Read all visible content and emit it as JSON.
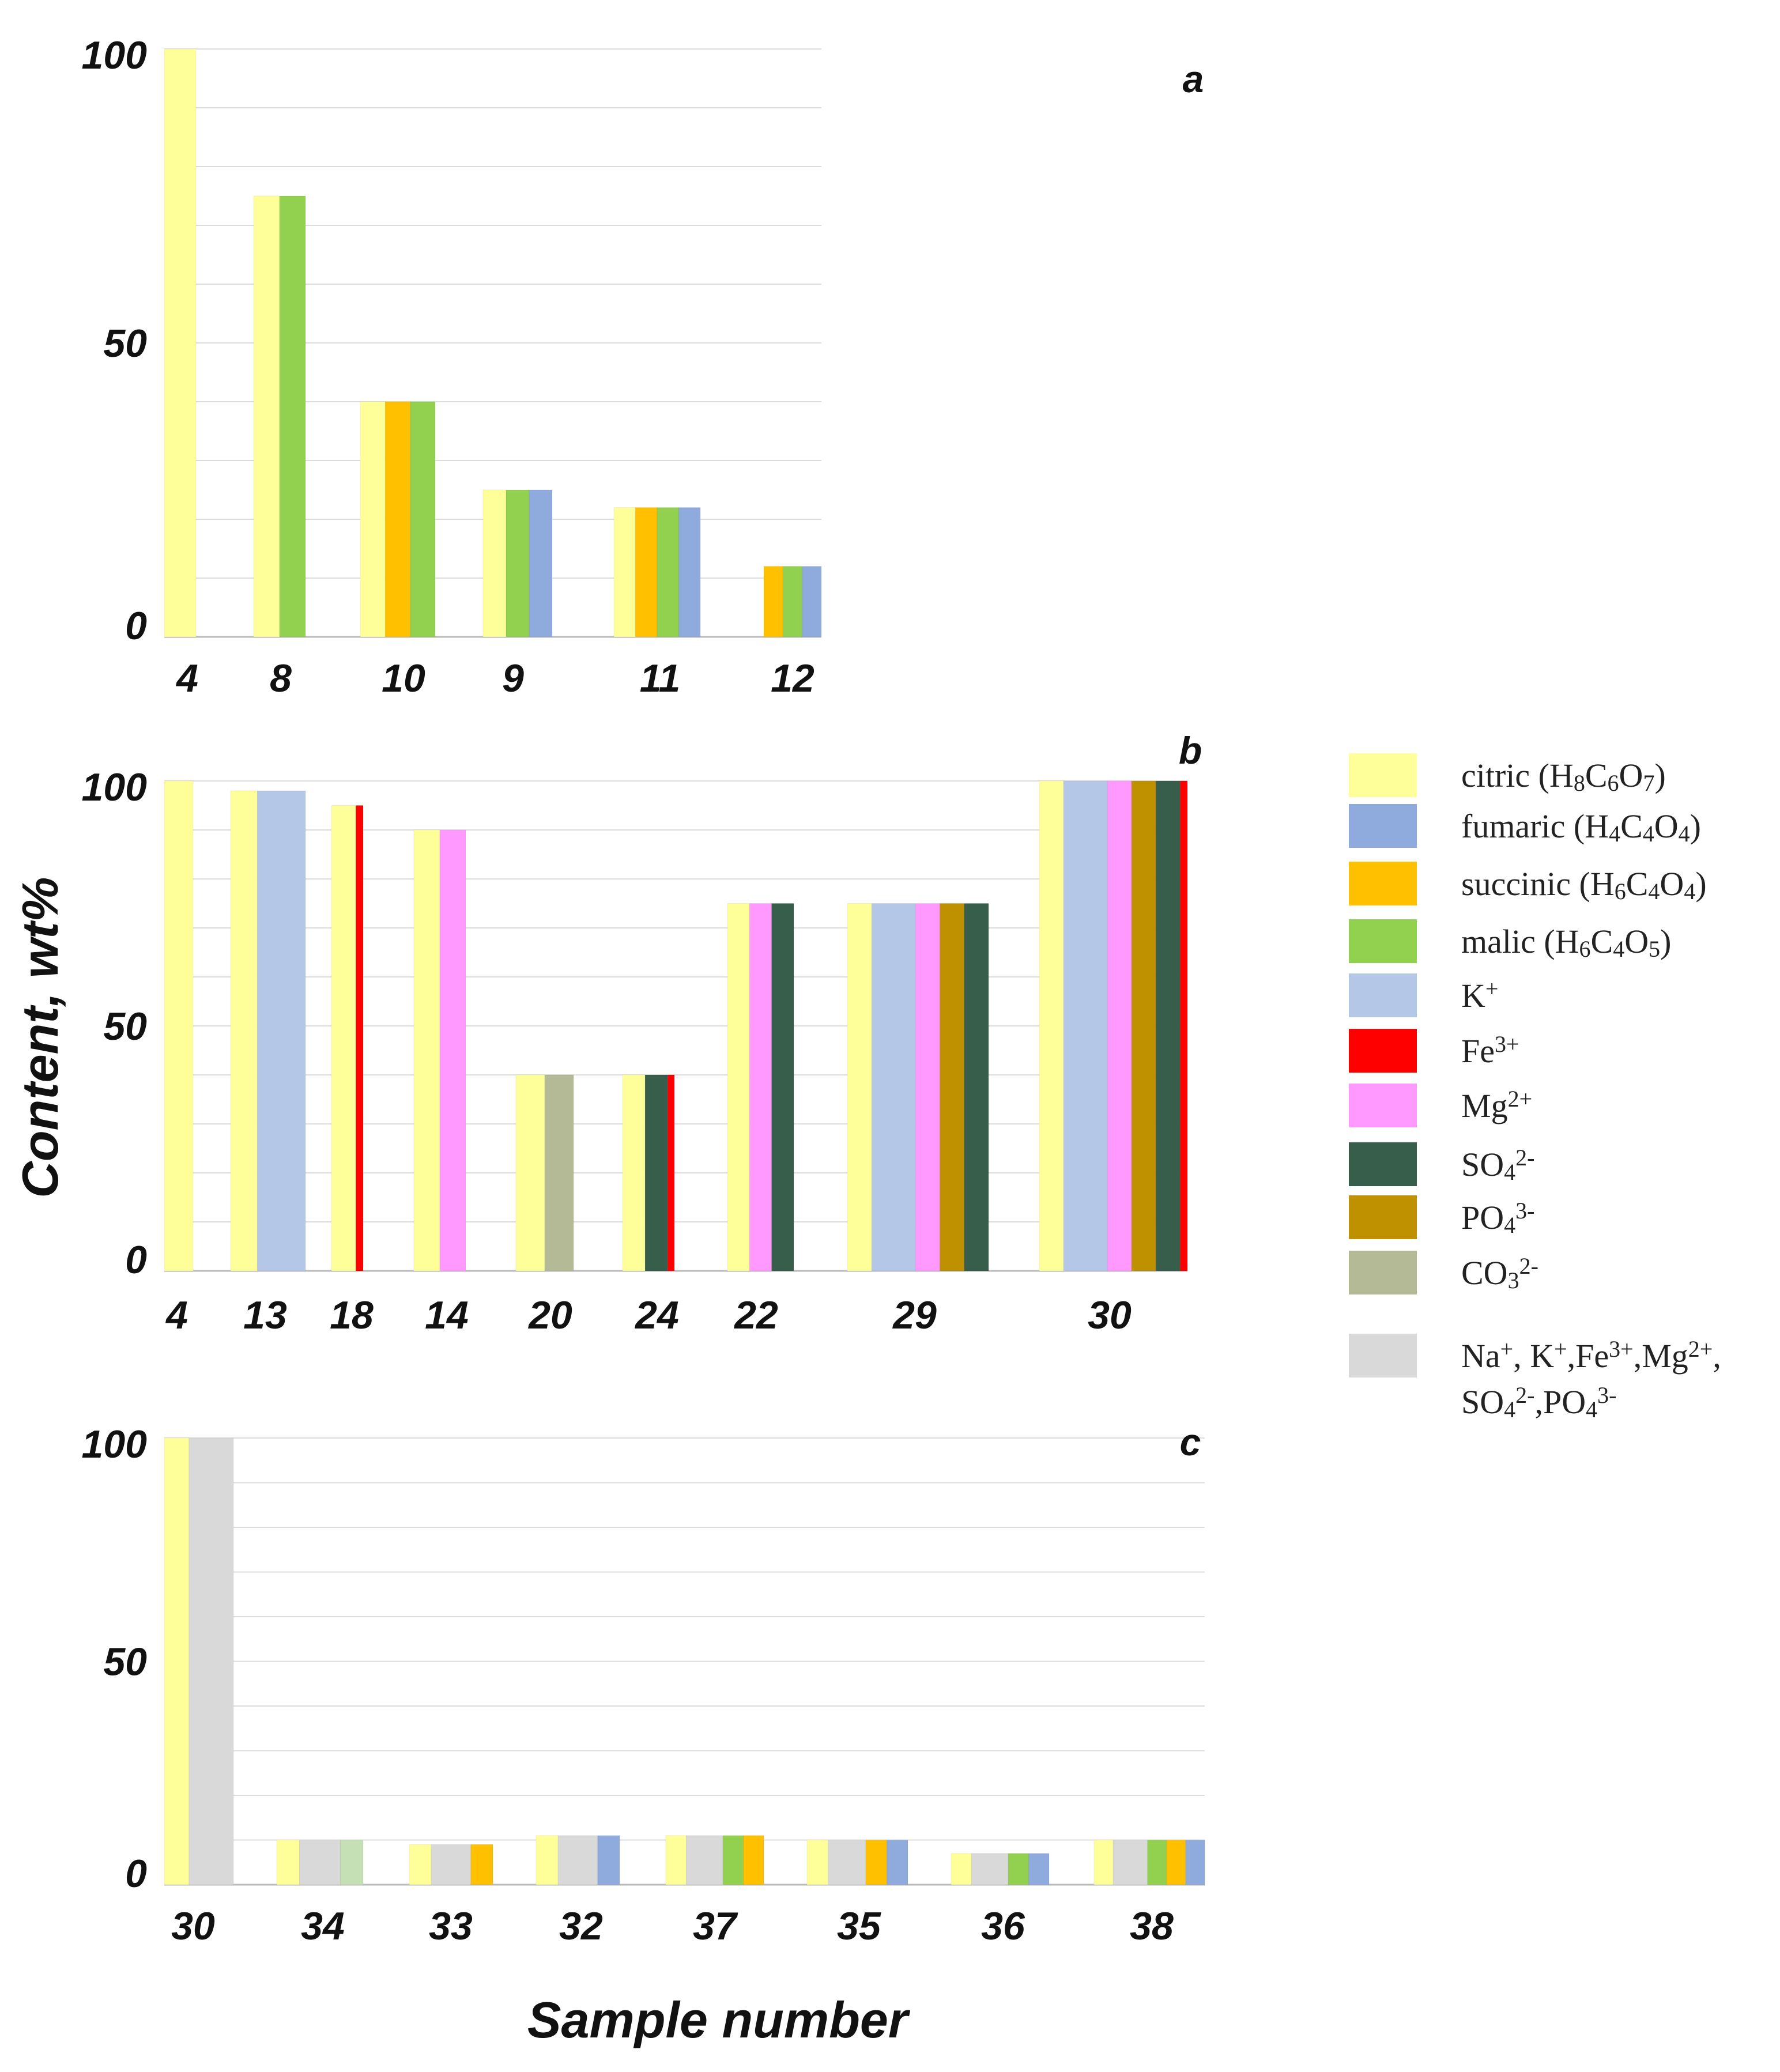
{
  "colors": {
    "citric": "#ffff99",
    "fumaric": "#8faadc",
    "succinic": "#ffc000",
    "malic": "#92d050",
    "K": "#b4c7e7",
    "Fe": "#ff0000",
    "Mg": "#ff99ff",
    "SO4": "#375d4b",
    "PO4": "#bf9000",
    "CO3": "#b4b996",
    "mix": "#d9d9d9",
    "mixlight": "#c5e0b4"
  },
  "axes": {
    "ylabel": "Content, wt%",
    "xlabel": "Sample number",
    "ytick_0": "0",
    "ytick_50": "50",
    "ytick_100": "100"
  },
  "legend": {
    "items": [
      {
        "key": "citric",
        "label": "citric (",
        "formula": [
          [
            "H",
            ""
          ],
          [
            "8",
            "sub"
          ],
          [
            "C",
            ""
          ],
          [
            "6",
            "sub"
          ],
          [
            "O",
            ""
          ],
          [
            "7",
            "sub"
          ]
        ],
        "close": ")"
      },
      {
        "key": "fumaric",
        "label": "fumaric (",
        "formula": [
          [
            "H",
            ""
          ],
          [
            "4",
            "sub"
          ],
          [
            "C",
            ""
          ],
          [
            "4",
            "sub"
          ],
          [
            "O",
            ""
          ],
          [
            "4",
            "sub"
          ]
        ],
        "close": ")"
      },
      {
        "key": "succinic",
        "label": "succinic (",
        "formula": [
          [
            "H",
            ""
          ],
          [
            "6",
            "sub"
          ],
          [
            "C",
            ""
          ],
          [
            "4",
            "sub"
          ],
          [
            "O",
            ""
          ],
          [
            "4",
            "sub"
          ]
        ],
        "close": ")"
      },
      {
        "key": "malic",
        "label": "malic (",
        "formula": [
          [
            "H",
            ""
          ],
          [
            "6",
            "sub"
          ],
          [
            "C",
            ""
          ],
          [
            "4",
            "sub"
          ],
          [
            "O",
            ""
          ],
          [
            "5",
            "sub"
          ]
        ],
        "close": ")"
      },
      {
        "key": "K",
        "label": "K",
        "formula": [
          [
            "+",
            "sup"
          ]
        ],
        "close": ""
      },
      {
        "key": "Fe",
        "label": "Fe",
        "formula": [
          [
            "3+",
            "sup"
          ]
        ],
        "close": ""
      },
      {
        "key": "Mg",
        "label": "Mg",
        "formula": [
          [
            "2+",
            "sup"
          ]
        ],
        "close": ""
      },
      {
        "key": "SO4",
        "label": "SO",
        "formula": [
          [
            "4",
            "sub"
          ],
          [
            "2-",
            "sup"
          ]
        ],
        "close": ""
      },
      {
        "key": "PO4",
        "label": "PO",
        "formula": [
          [
            "4",
            "sub"
          ],
          [
            "3-",
            "sup"
          ]
        ],
        "close": ""
      },
      {
        "key": "CO3",
        "label": "CO",
        "formula": [
          [
            "3",
            "sub"
          ],
          [
            "2-",
            "sup"
          ]
        ],
        "close": ""
      },
      {
        "key": "mix",
        "label": "Na",
        "formula": [
          [
            "+",
            "sup"
          ],
          [
            ", K",
            ""
          ],
          [
            "+",
            "sup"
          ],
          [
            ",Fe",
            ""
          ],
          [
            "3+",
            "sup"
          ],
          [
            ",Mg",
            ""
          ],
          [
            "2+",
            "sup"
          ],
          [
            ",",
            ""
          ]
        ],
        "close": "",
        "line2": [
          [
            "SO",
            ""
          ],
          [
            "4",
            "sub"
          ],
          [
            "2-",
            "sup"
          ],
          [
            ",PO",
            ""
          ],
          [
            "4",
            "sub"
          ],
          [
            "3-",
            "sup"
          ]
        ]
      }
    ]
  },
  "chart_data": [
    {
      "type": "bar",
      "panel": "a",
      "ylim": [
        0,
        100
      ],
      "categories": [
        "4",
        "8",
        "10",
        "9",
        "11",
        "12"
      ],
      "groups": [
        {
          "sample": "4",
          "bars": [
            {
              "c": "citric",
              "v": 100
            }
          ]
        },
        {
          "sample": "8",
          "bars": [
            {
              "c": "citric",
              "v": 75
            },
            {
              "c": "malic",
              "v": 75
            }
          ]
        },
        {
          "sample": "10",
          "bars": [
            {
              "c": "citric",
              "v": 40
            },
            {
              "c": "succinic",
              "v": 40
            },
            {
              "c": "malic",
              "v": 40
            }
          ]
        },
        {
          "sample": "9",
          "bars": [
            {
              "c": "citric",
              "v": 25
            },
            {
              "c": "malic",
              "v": 25
            },
            {
              "c": "fumaric",
              "v": 25
            }
          ]
        },
        {
          "sample": "11",
          "bars": [
            {
              "c": "citric",
              "v": 22
            },
            {
              "c": "succinic",
              "v": 22
            },
            {
              "c": "malic",
              "v": 22
            },
            {
              "c": "fumaric",
              "v": 22
            }
          ]
        },
        {
          "sample": "12",
          "bars": [
            {
              "c": "succinic",
              "v": 12
            },
            {
              "c": "malic",
              "v": 12
            },
            {
              "c": "fumaric",
              "v": 12
            }
          ]
        }
      ]
    },
    {
      "type": "bar",
      "panel": "b",
      "ylim": [
        0,
        100
      ],
      "categories": [
        "4",
        "13",
        "18",
        "14",
        "20",
        "24",
        "22",
        "29",
        "30"
      ],
      "groups": [
        {
          "sample": "4",
          "bars": [
            {
              "c": "citric",
              "v": 100
            }
          ]
        },
        {
          "sample": "13",
          "bars": [
            {
              "c": "citric",
              "v": 98
            },
            {
              "c": "K",
              "v": 98
            }
          ]
        },
        {
          "sample": "18",
          "bars": [
            {
              "c": "citric",
              "v": 95
            },
            {
              "c": "Fe",
              "v": 95
            }
          ]
        },
        {
          "sample": "14",
          "bars": [
            {
              "c": "citric",
              "v": 90
            },
            {
              "c": "Mg",
              "v": 90
            }
          ]
        },
        {
          "sample": "20",
          "bars": [
            {
              "c": "citric",
              "v": 40
            },
            {
              "c": "CO3",
              "v": 40
            }
          ]
        },
        {
          "sample": "24",
          "bars": [
            {
              "c": "citric",
              "v": 40
            },
            {
              "c": "SO4",
              "v": 40
            },
            {
              "c": "Fe",
              "v": 40
            }
          ]
        },
        {
          "sample": "22",
          "bars": [
            {
              "c": "citric",
              "v": 75
            },
            {
              "c": "Mg",
              "v": 75
            },
            {
              "c": "SO4",
              "v": 75
            }
          ]
        },
        {
          "sample": "29",
          "bars": [
            {
              "c": "citric",
              "v": 75
            },
            {
              "c": "K",
              "v": 75
            },
            {
              "c": "Mg",
              "v": 75
            },
            {
              "c": "PO4",
              "v": 75
            },
            {
              "c": "SO4",
              "v": 75
            }
          ]
        },
        {
          "sample": "30",
          "bars": [
            {
              "c": "citric",
              "v": 100
            },
            {
              "c": "K",
              "v": 100
            },
            {
              "c": "Mg",
              "v": 100
            },
            {
              "c": "PO4",
              "v": 100
            },
            {
              "c": "SO4",
              "v": 100
            },
            {
              "c": "Fe",
              "v": 100
            }
          ]
        }
      ]
    },
    {
      "type": "bar",
      "panel": "c",
      "ylim": [
        0,
        100
      ],
      "categories": [
        "30",
        "34",
        "33",
        "32",
        "37",
        "35",
        "36",
        "38"
      ],
      "groups": [
        {
          "sample": "30",
          "bars": [
            {
              "c": "citric",
              "v": 100
            },
            {
              "c": "mix",
              "v": 100
            }
          ]
        },
        {
          "sample": "34",
          "bars": [
            {
              "c": "citric",
              "v": 10
            },
            {
              "c": "mix",
              "v": 10
            },
            {
              "c": "mixlight",
              "v": 10
            }
          ]
        },
        {
          "sample": "33",
          "bars": [
            {
              "c": "citric",
              "v": 9
            },
            {
              "c": "mix",
              "v": 9
            },
            {
              "c": "succinic",
              "v": 9
            }
          ]
        },
        {
          "sample": "32",
          "bars": [
            {
              "c": "citric",
              "v": 11
            },
            {
              "c": "mix",
              "v": 11
            },
            {
              "c": "fumaric",
              "v": 11
            }
          ]
        },
        {
          "sample": "37",
          "bars": [
            {
              "c": "citric",
              "v": 11
            },
            {
              "c": "mix",
              "v": 11
            },
            {
              "c": "malic",
              "v": 11
            },
            {
              "c": "succinic",
              "v": 11
            }
          ]
        },
        {
          "sample": "35",
          "bars": [
            {
              "c": "citric",
              "v": 10
            },
            {
              "c": "mix",
              "v": 10
            },
            {
              "c": "succinic",
              "v": 10
            },
            {
              "c": "fumaric",
              "v": 10
            }
          ]
        },
        {
          "sample": "36",
          "bars": [
            {
              "c": "citric",
              "v": 7
            },
            {
              "c": "mix",
              "v": 7
            },
            {
              "c": "malic",
              "v": 7
            },
            {
              "c": "fumaric",
              "v": 7
            }
          ]
        },
        {
          "sample": "38",
          "bars": [
            {
              "c": "citric",
              "v": 10
            },
            {
              "c": "mix",
              "v": 10
            },
            {
              "c": "malic",
              "v": 10
            },
            {
              "c": "succinic",
              "v": 10
            },
            {
              "c": "fumaric",
              "v": 10
            }
          ]
        }
      ]
    }
  ]
}
